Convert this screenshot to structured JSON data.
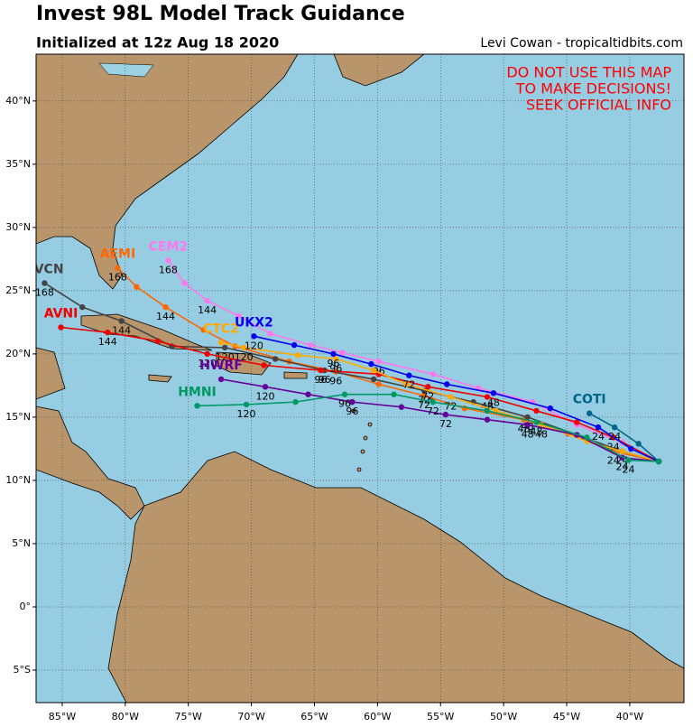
{
  "header": {
    "title": "Invest 98L Model Track Guidance",
    "subtitle": "Initialized at 12z Aug 18 2020",
    "credit": "Levi Cowan - tropicaltidbits.com"
  },
  "warning": [
    "DO NOT USE THIS MAP",
    "TO MAKE DECISIONS!",
    "SEEK OFFICIAL INFO"
  ],
  "map": {
    "xlim": [
      -87.07,
      -35.7
    ],
    "ylim": [
      -7.57,
      43.7
    ],
    "xticks": [
      {
        "value": -85,
        "label": "85°W"
      },
      {
        "value": -80,
        "label": "80°W"
      },
      {
        "value": -75,
        "label": "75°W"
      },
      {
        "value": -70,
        "label": "70°W"
      },
      {
        "value": -65,
        "label": "65°W"
      },
      {
        "value": -60,
        "label": "60°W"
      },
      {
        "value": -55,
        "label": "55°W"
      },
      {
        "value": -50,
        "label": "50°W"
      },
      {
        "value": -45,
        "label": "45°W"
      },
      {
        "value": -40,
        "label": "40°W"
      }
    ],
    "yticks": [
      {
        "value": -5,
        "label": "5°S"
      },
      {
        "value": 0,
        "label": "0°"
      },
      {
        "value": 5,
        "label": "5°N"
      },
      {
        "value": 10,
        "label": "10°N"
      },
      {
        "value": 15,
        "label": "15°N"
      },
      {
        "value": 20,
        "label": "20°N"
      },
      {
        "value": 25,
        "label": "25°N"
      },
      {
        "value": 30,
        "label": "30°N"
      },
      {
        "value": 35,
        "label": "35°N"
      },
      {
        "value": 40,
        "label": "40°N"
      }
    ],
    "grid": true,
    "tracks": [
      {
        "name": "CEM2",
        "color": "#ff77ee",
        "lon": [
          -37.7,
          -40.6,
          -44.2,
          -47.7,
          -52.0,
          -55.6,
          -59.9,
          -62.8,
          -65.3,
          -68.5,
          -71.0,
          -73.5,
          -75.3,
          -76.6
        ],
        "lat": [
          11.5,
          13.0,
          14.4,
          16.2,
          17.3,
          18.4,
          19.4,
          20.1,
          20.7,
          21.6,
          23.0,
          24.2,
          25.6,
          27.4
        ],
        "hours": [
          null,
          null,
          null,
          null,
          null,
          null,
          "96",
          null,
          null,
          null,
          null,
          "144",
          null,
          "168"
        ]
      },
      {
        "name": "AEMI",
        "color": "#ff6600",
        "lon": [
          -37.7,
          -41.3,
          -44.9,
          -48.4,
          -53.1,
          -56.3,
          -59.9,
          -63.3,
          -67.0,
          -71.3,
          -73.8,
          -76.8,
          -79.1,
          -80.6
        ],
        "lat": [
          11.5,
          12.3,
          13.7,
          14.8,
          15.7,
          16.7,
          17.6,
          18.6,
          19.4,
          20.6,
          21.9,
          23.7,
          25.3,
          26.8
        ],
        "hours": [
          null,
          "24",
          null,
          "48",
          null,
          "72",
          null,
          "96",
          null,
          null,
          null,
          "144",
          null,
          "168"
        ]
      },
      {
        "name": "TVCN",
        "color": "#444444",
        "lon": [
          -37.7,
          -40.6,
          -44.2,
          -48.1,
          -52.4,
          -56.3,
          -60.3,
          -64.2,
          -68.1,
          -72.1,
          -76.3,
          -80.3,
          -83.4,
          -86.4
        ],
        "lat": [
          11.5,
          12.3,
          13.6,
          15.0,
          16.2,
          17.1,
          18.0,
          18.7,
          19.6,
          20.5,
          20.6,
          22.6,
          23.7,
          25.6
        ],
        "hours": [
          null,
          null,
          null,
          "48",
          null,
          "72",
          null,
          "96",
          null,
          "120",
          null,
          "144",
          null,
          "168"
        ]
      },
      {
        "name": "AVNI",
        "color": "#ee0000",
        "lon": [
          -37.7,
          -41.3,
          -44.2,
          -47.4,
          -51.3,
          -56.0,
          -59.9,
          -64.5,
          -69.0,
          -73.5,
          -77.4,
          -81.4,
          -85.1
        ],
        "lat": [
          11.5,
          13.4,
          14.6,
          15.5,
          16.6,
          17.4,
          18.4,
          18.7,
          19.1,
          20.0,
          21.0,
          21.7,
          22.1
        ],
        "hours": [
          null,
          "24",
          null,
          null,
          "48",
          "72",
          null,
          "96",
          null,
          "120",
          null,
          "144",
          null
        ]
      },
      {
        "name": "CTC2",
        "color": "#ffaa00",
        "lon": [
          -37.7,
          -40.6,
          -43.4,
          -47.0,
          -50.6,
          -54.2,
          -57.7,
          -60.3,
          -63.3,
          -66.3,
          -70.6,
          -72.4
        ],
        "lat": [
          11.5,
          12.3,
          13.1,
          14.4,
          15.5,
          16.6,
          17.6,
          18.7,
          19.6,
          19.9,
          20.5,
          20.9
        ],
        "hours": [
          null,
          "24",
          null,
          "48",
          null,
          "72",
          null,
          null,
          "96",
          null,
          "120",
          null
        ]
      },
      {
        "name": "UKX2",
        "color": "#0000ee",
        "lon": [
          -37.7,
          -39.9,
          -42.5,
          -46.3,
          -50.8,
          -54.5,
          -57.5,
          -60.5,
          -63.5,
          -66.6,
          -69.8
        ],
        "lat": [
          11.5,
          12.5,
          14.2,
          15.7,
          16.9,
          17.6,
          18.3,
          19.2,
          20.0,
          20.7,
          21.4
        ],
        "hours": [
          null,
          null,
          "24",
          null,
          "48",
          null,
          "72",
          null,
          "96",
          null,
          "120"
        ]
      },
      {
        "name": "COTI",
        "color": "#006688",
        "lon": [
          -37.7,
          -39.3,
          -41.2,
          -43.2
        ],
        "lat": [
          11.5,
          12.9,
          14.2,
          15.3
        ],
        "hours": [
          null,
          null,
          "24",
          null
        ]
      },
      {
        "name": "HWRF",
        "color": "#660099",
        "lon": [
          -37.7,
          -40.6,
          -44.2,
          -48.1,
          -51.3,
          -54.6,
          -58.1,
          -62.0,
          -65.5,
          -68.9,
          -72.4
        ],
        "lat": [
          11.5,
          11.8,
          13.6,
          14.4,
          14.8,
          15.2,
          15.8,
          16.2,
          16.8,
          17.4,
          18.0
        ],
        "hours": [
          null,
          "24",
          null,
          "48",
          null,
          "72",
          null,
          "96",
          null,
          "120",
          null
        ]
      },
      {
        "name": "HMNI",
        "color": "#009966",
        "lon": [
          -37.7,
          -40.1,
          -43.4,
          -47.4,
          -51.3,
          -55.6,
          -58.7,
          -62.6,
          -66.5,
          -70.4,
          -74.3
        ],
        "lat": [
          11.5,
          11.6,
          13.4,
          14.6,
          15.5,
          16.2,
          16.8,
          16.8,
          16.2,
          16.0,
          15.9
        ],
        "hours": [
          null,
          "24",
          null,
          "48",
          null,
          "72",
          null,
          "96",
          null,
          "120",
          null
        ]
      }
    ]
  }
}
